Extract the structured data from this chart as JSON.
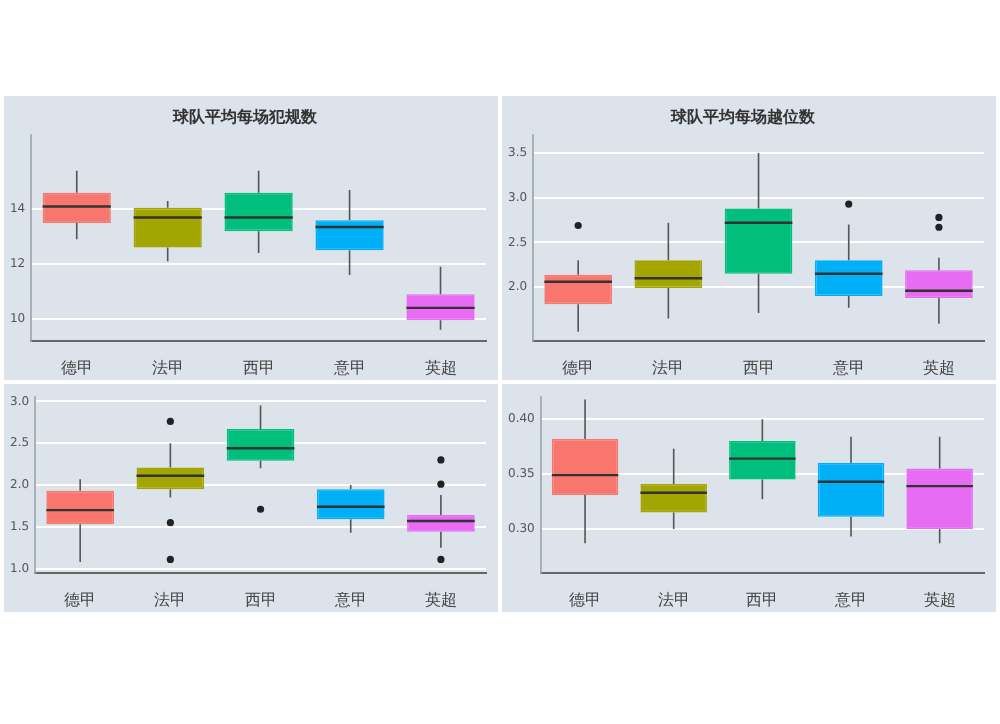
{
  "chart_data": [
    {
      "type": "box",
      "title": "球队平均每场犯规数",
      "categories": [
        "德甲",
        "法甲",
        "西甲",
        "意甲",
        "英超"
      ],
      "colors": [
        "#f8766d",
        "#a3a500",
        "#00bf7d",
        "#00b0f6",
        "#e76bf3"
      ],
      "ylim": [
        9.2,
        16.7
      ],
      "yticks": [
        10,
        12,
        14
      ],
      "grid": "y",
      "boxes": [
        {
          "low": 12.9,
          "q1": 13.5,
          "median": 14.1,
          "q3": 14.6,
          "high": 15.4
        },
        {
          "low": 12.1,
          "q1": 12.6,
          "median": 13.7,
          "q3": 14.05,
          "high": 14.3
        },
        {
          "low": 12.4,
          "q1": 13.2,
          "median": 13.7,
          "q3": 14.6,
          "high": 15.4
        },
        {
          "low": 11.6,
          "q1": 12.5,
          "median": 13.35,
          "q3": 13.6,
          "high": 14.7
        },
        {
          "low": 9.6,
          "q1": 9.95,
          "median": 10.4,
          "q3": 10.9,
          "high": 11.9
        }
      ]
    },
    {
      "type": "box",
      "title": "球队平均每场越位数",
      "categories": [
        "德甲",
        "法甲",
        "西甲",
        "意甲",
        "英超"
      ],
      "colors": [
        "#f8766d",
        "#a3a500",
        "#00bf7d",
        "#00b0f6",
        "#e76bf3"
      ],
      "ylim": [
        1.4,
        3.7
      ],
      "yticks": [
        {
          "value": 2,
          "label": "2.0"
        },
        {
          "value": 2.5,
          "label": "2.5"
        },
        {
          "value": 3,
          "label": "3.0"
        },
        {
          "value": 3.5,
          "label": "3.5"
        }
      ],
      "grid": "y",
      "boxes": [
        {
          "low": 1.5,
          "q1": 1.81,
          "median": 2.06,
          "q3": 2.14,
          "high": 2.3,
          "outliers": [
            2.69
          ]
        },
        {
          "low": 1.65,
          "q1": 1.99,
          "median": 2.1,
          "q3": 2.3,
          "high": 2.72
        },
        {
          "low": 1.71,
          "q1": 2.15,
          "median": 2.72,
          "q3": 2.88,
          "high": 3.5
        },
        {
          "low": 1.77,
          "q1": 1.9,
          "median": 2.15,
          "q3": 2.3,
          "high": 2.7,
          "outliers": [
            2.93
          ]
        },
        {
          "low": 1.59,
          "q1": 1.88,
          "median": 1.96,
          "q3": 2.19,
          "high": 2.33,
          "outliers": [
            2.78,
            2.67
          ]
        }
      ]
    },
    {
      "type": "box",
      "categories": [
        "德甲",
        "法甲",
        "西甲",
        "意甲",
        "英超"
      ],
      "colors": [
        "#f8766d",
        "#a3a500",
        "#00bf7d",
        "#00b0f6",
        "#e76bf3"
      ],
      "ylim": [
        0.95,
        3.05
      ],
      "yticks": [
        {
          "value": 1,
          "label": "1.0"
        },
        {
          "value": 1.5,
          "label": "1.5"
        },
        {
          "value": 2,
          "label": "2.0"
        },
        {
          "value": 2.5,
          "label": "2.5"
        },
        {
          "value": 3,
          "label": "3.0"
        }
      ],
      "grid": "y",
      "boxes": [
        {
          "low": 1.08,
          "q1": 1.53,
          "median": 1.7,
          "q3": 1.93,
          "high": 2.07
        },
        {
          "low": 1.85,
          "q1": 1.95,
          "median": 2.11,
          "q3": 2.21,
          "high": 2.5,
          "outliers": [
            2.76,
            1.55,
            1.11
          ]
        },
        {
          "low": 2.2,
          "q1": 2.29,
          "median": 2.44,
          "q3": 2.67,
          "high": 2.95,
          "outliers": [
            1.71
          ]
        },
        {
          "low": 1.43,
          "q1": 1.59,
          "median": 1.74,
          "q3": 1.95,
          "high": 2.0
        },
        {
          "low": 1.25,
          "q1": 1.44,
          "median": 1.57,
          "q3": 1.64,
          "high": 1.88,
          "outliers": [
            2.3,
            2.01,
            1.11
          ]
        }
      ]
    },
    {
      "type": "box",
      "categories": [
        "德甲",
        "法甲",
        "西甲",
        "意甲",
        "英超"
      ],
      "colors": [
        "#f8766d",
        "#a3a500",
        "#00bf7d",
        "#00b0f6",
        "#e76bf3"
      ],
      "ylim": [
        0.26,
        0.42
      ],
      "yticks": [
        {
          "value": 0.3,
          "label": "0.30"
        },
        {
          "value": 0.35,
          "label": "0.35"
        },
        {
          "value": 0.4,
          "label": "0.40"
        }
      ],
      "grid": "y",
      "boxes": [
        {
          "low": 0.287,
          "q1": 0.331,
          "median": 0.349,
          "q3": 0.382,
          "high": 0.418
        },
        {
          "low": 0.3,
          "q1": 0.315,
          "median": 0.333,
          "q3": 0.341,
          "high": 0.373
        },
        {
          "low": 0.327,
          "q1": 0.345,
          "median": 0.364,
          "q3": 0.38,
          "high": 0.4
        },
        {
          "low": 0.293,
          "q1": 0.311,
          "median": 0.343,
          "q3": 0.36,
          "high": 0.384
        },
        {
          "low": 0.287,
          "q1": 0.3,
          "median": 0.339,
          "q3": 0.355,
          "high": 0.384
        }
      ]
    }
  ]
}
